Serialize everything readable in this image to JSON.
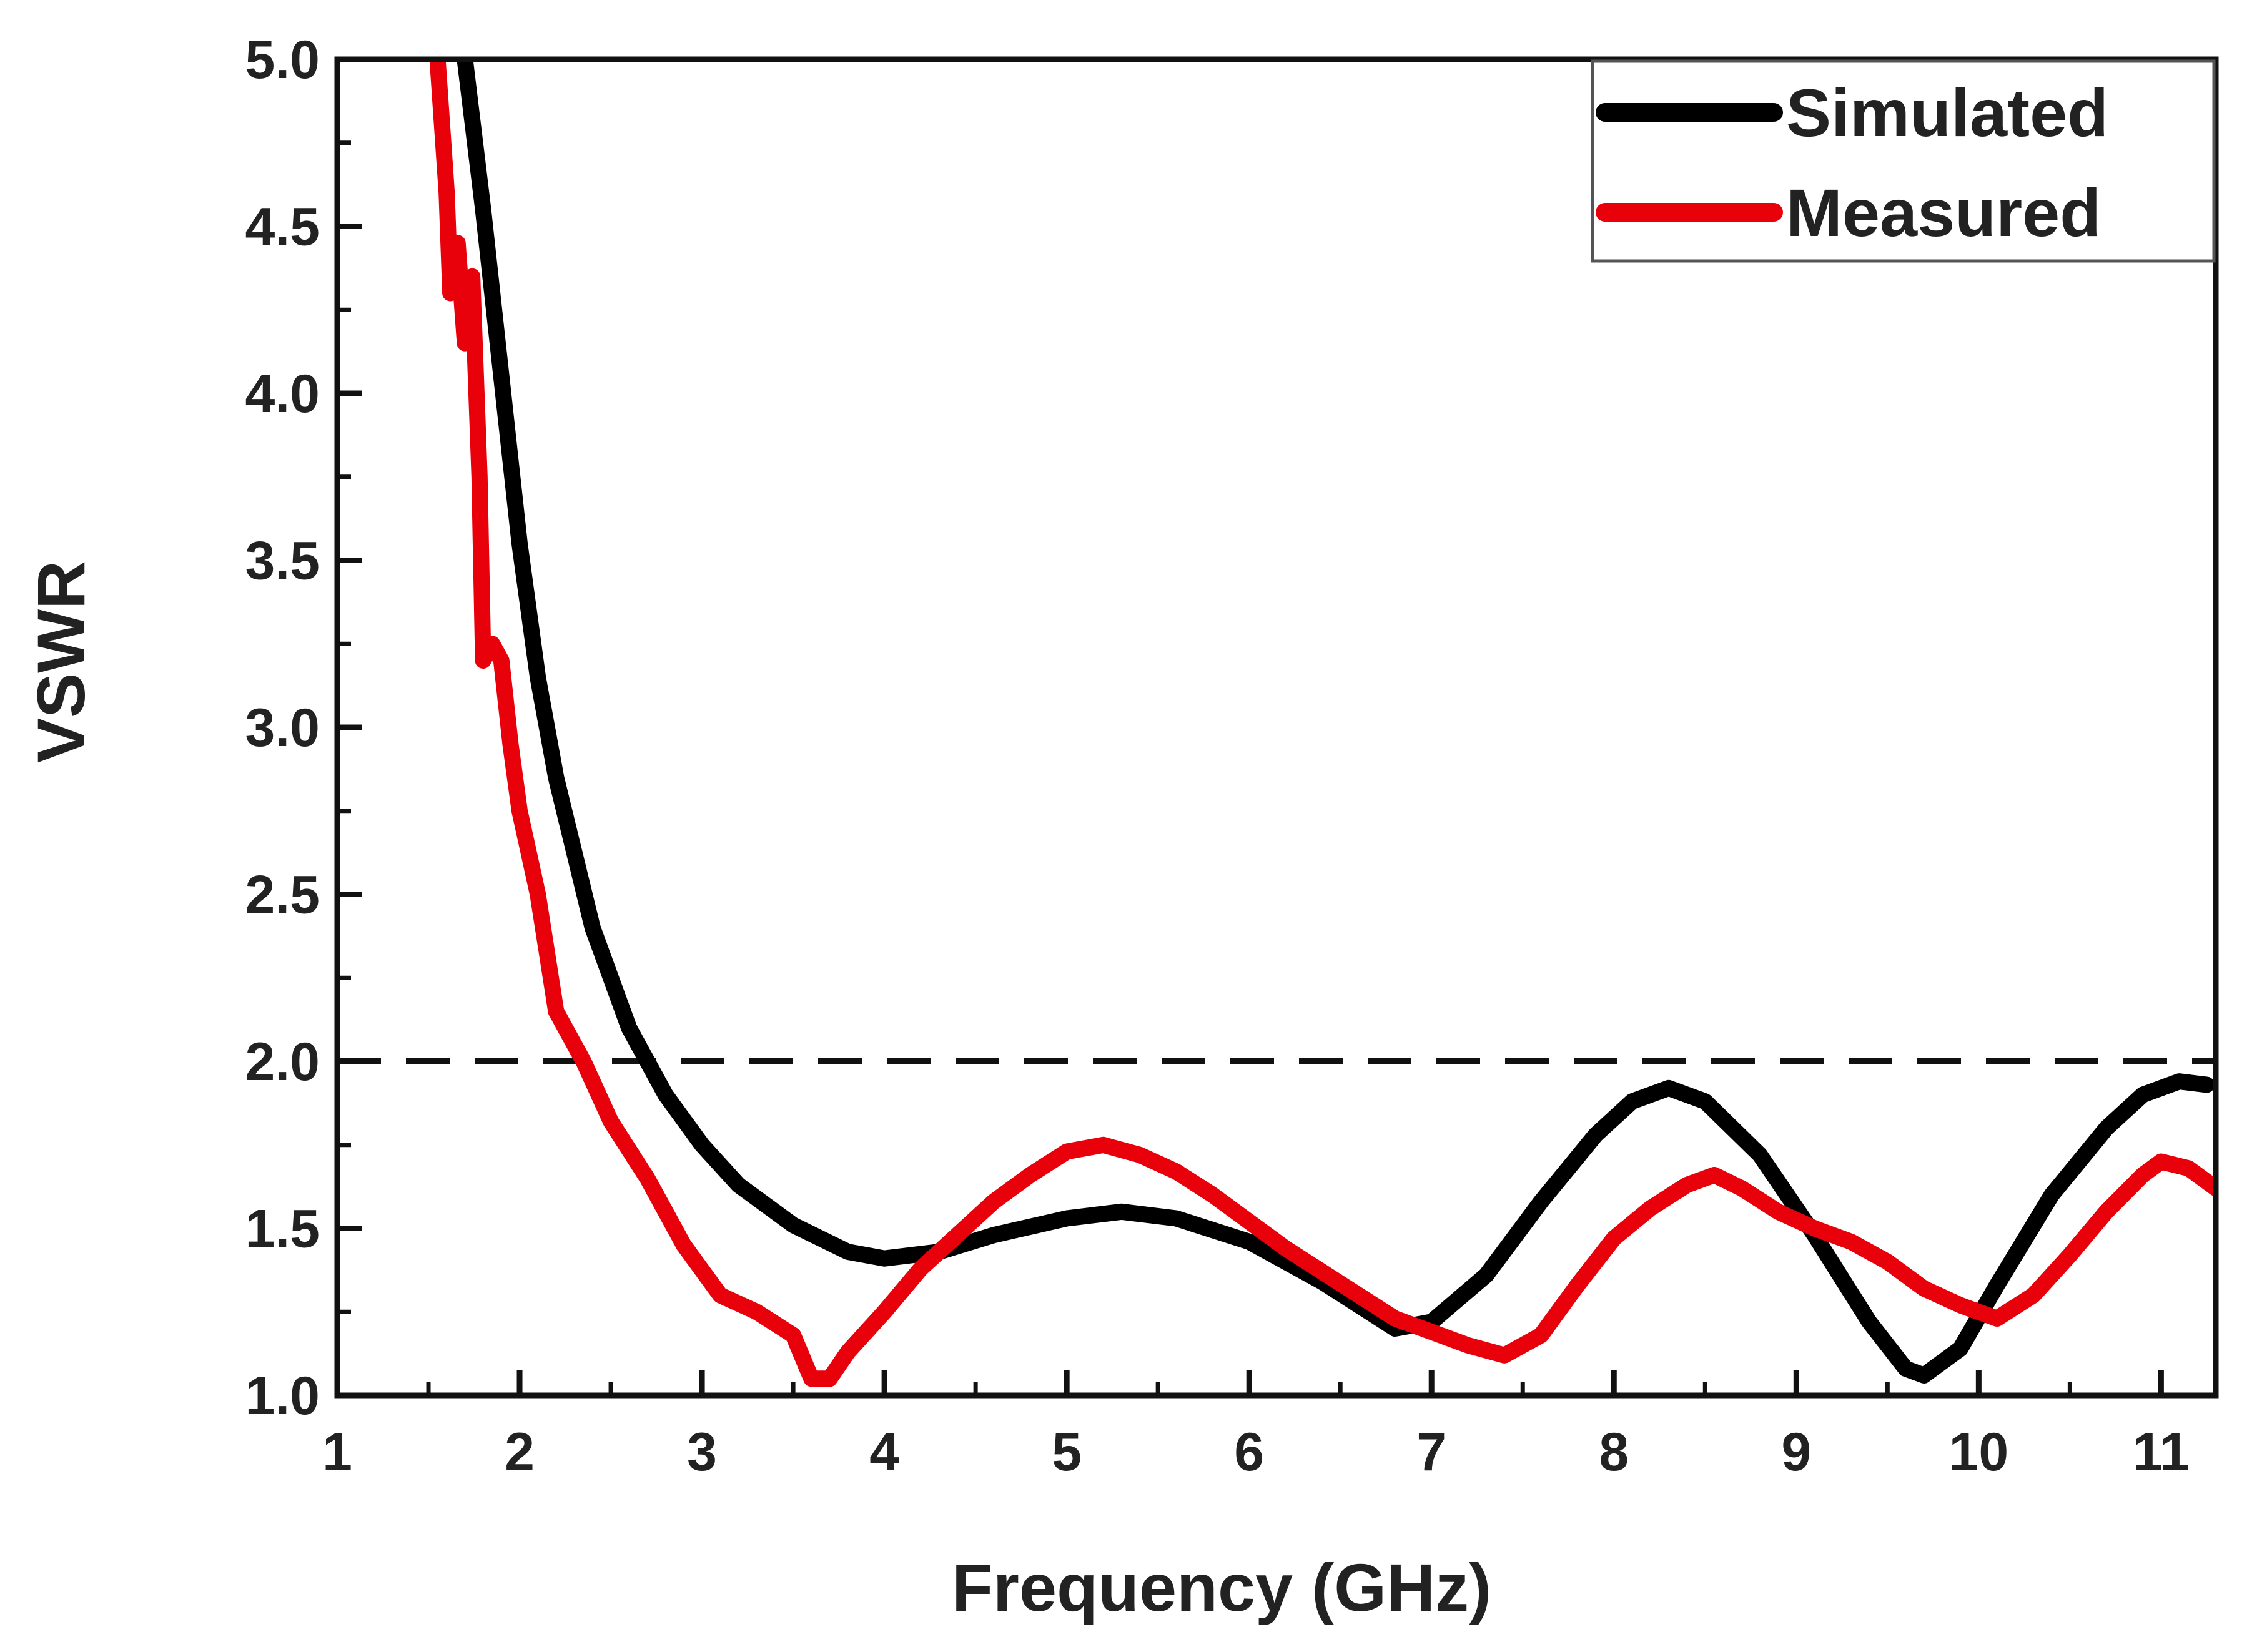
{
  "chart_data": {
    "type": "line",
    "title": "",
    "xlabel": "Frequency (GHz)",
    "ylabel": "VSWR",
    "xlim": [
      1,
      11.3
    ],
    "ylim": [
      1.0,
      5.0
    ],
    "x_ticks": [
      "1",
      "2",
      "3",
      "4",
      "5",
      "6",
      "7",
      "8",
      "9",
      "10",
      "11"
    ],
    "y_ticks": [
      "1.0",
      "1.5",
      "2.0",
      "2.5",
      "3.0",
      "3.5",
      "4.0",
      "4.5",
      "5.0"
    ],
    "grid": false,
    "legend_position": "top-right",
    "reference_line": {
      "y": 2.0,
      "style": "dashed",
      "color": "#111111"
    },
    "series": [
      {
        "name": "Simulated",
        "color": "#000000",
        "points": [
          [
            1.7,
            5.0
          ],
          [
            1.8,
            4.55
          ],
          [
            1.9,
            4.05
          ],
          [
            2.0,
            3.55
          ],
          [
            2.1,
            3.15
          ],
          [
            2.2,
            2.85
          ],
          [
            2.4,
            2.4
          ],
          [
            2.6,
            2.1
          ],
          [
            2.8,
            1.9
          ],
          [
            3.0,
            1.75
          ],
          [
            3.2,
            1.63
          ],
          [
            3.5,
            1.51
          ],
          [
            3.8,
            1.43
          ],
          [
            4.0,
            1.41
          ],
          [
            4.3,
            1.43
          ],
          [
            4.6,
            1.48
          ],
          [
            5.0,
            1.53
          ],
          [
            5.3,
            1.55
          ],
          [
            5.6,
            1.53
          ],
          [
            6.0,
            1.46
          ],
          [
            6.4,
            1.34
          ],
          [
            6.8,
            1.2
          ],
          [
            7.0,
            1.22
          ],
          [
            7.3,
            1.36
          ],
          [
            7.6,
            1.58
          ],
          [
            7.9,
            1.78
          ],
          [
            8.1,
            1.88
          ],
          [
            8.3,
            1.92
          ],
          [
            8.5,
            1.88
          ],
          [
            8.8,
            1.72
          ],
          [
            9.1,
            1.48
          ],
          [
            9.4,
            1.22
          ],
          [
            9.6,
            1.08
          ],
          [
            9.7,
            1.06
          ],
          [
            9.9,
            1.14
          ],
          [
            10.1,
            1.33
          ],
          [
            10.4,
            1.6
          ],
          [
            10.7,
            1.8
          ],
          [
            10.9,
            1.9
          ],
          [
            11.1,
            1.94
          ],
          [
            11.25,
            1.93
          ]
        ]
      },
      {
        "name": "Measured",
        "color": "#e8000b",
        "points": [
          [
            1.55,
            5.0
          ],
          [
            1.6,
            4.6
          ],
          [
            1.62,
            4.3
          ],
          [
            1.66,
            4.45
          ],
          [
            1.7,
            4.15
          ],
          [
            1.74,
            4.35
          ],
          [
            1.78,
            3.75
          ],
          [
            1.8,
            3.2
          ],
          [
            1.85,
            3.25
          ],
          [
            1.9,
            3.2
          ],
          [
            1.95,
            2.95
          ],
          [
            2.0,
            2.75
          ],
          [
            2.1,
            2.5
          ],
          [
            2.2,
            2.15
          ],
          [
            2.35,
            2.0
          ],
          [
            2.5,
            1.82
          ],
          [
            2.7,
            1.65
          ],
          [
            2.9,
            1.45
          ],
          [
            3.1,
            1.3
          ],
          [
            3.3,
            1.25
          ],
          [
            3.5,
            1.18
          ],
          [
            3.6,
            1.05
          ],
          [
            3.7,
            1.05
          ],
          [
            3.8,
            1.13
          ],
          [
            4.0,
            1.25
          ],
          [
            4.2,
            1.38
          ],
          [
            4.4,
            1.48
          ],
          [
            4.6,
            1.58
          ],
          [
            4.8,
            1.66
          ],
          [
            5.0,
            1.73
          ],
          [
            5.2,
            1.75
          ],
          [
            5.4,
            1.72
          ],
          [
            5.6,
            1.67
          ],
          [
            5.8,
            1.6
          ],
          [
            6.0,
            1.52
          ],
          [
            6.2,
            1.44
          ],
          [
            6.4,
            1.37
          ],
          [
            6.6,
            1.3
          ],
          [
            6.8,
            1.23
          ],
          [
            7.0,
            1.19
          ],
          [
            7.2,
            1.15
          ],
          [
            7.4,
            1.12
          ],
          [
            7.6,
            1.18
          ],
          [
            7.8,
            1.33
          ],
          [
            8.0,
            1.47
          ],
          [
            8.2,
            1.56
          ],
          [
            8.4,
            1.63
          ],
          [
            8.55,
            1.66
          ],
          [
            8.7,
            1.62
          ],
          [
            8.9,
            1.55
          ],
          [
            9.1,
            1.5
          ],
          [
            9.3,
            1.46
          ],
          [
            9.5,
            1.4
          ],
          [
            9.7,
            1.32
          ],
          [
            9.9,
            1.27
          ],
          [
            10.1,
            1.23
          ],
          [
            10.3,
            1.3
          ],
          [
            10.5,
            1.42
          ],
          [
            10.7,
            1.55
          ],
          [
            10.9,
            1.66
          ],
          [
            11.0,
            1.7
          ],
          [
            11.15,
            1.68
          ],
          [
            11.3,
            1.62
          ]
        ]
      }
    ]
  }
}
